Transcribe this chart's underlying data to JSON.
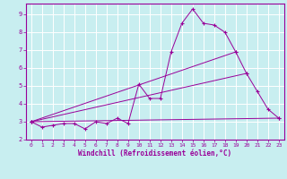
{
  "background_color": "#c8eef0",
  "grid_color": "#aadddd",
  "line_color": "#990099",
  "xlabel": "Windchill (Refroidissement éolien,°C)",
  "xlabel_color": "#990099",
  "xlim": [
    -0.5,
    23.5
  ],
  "ylim": [
    2,
    9.6
  ],
  "yticks": [
    2,
    3,
    4,
    5,
    6,
    7,
    8,
    9
  ],
  "xticks": [
    0,
    1,
    2,
    3,
    4,
    5,
    6,
    7,
    8,
    9,
    10,
    11,
    12,
    13,
    14,
    15,
    16,
    17,
    18,
    19,
    20,
    21,
    22,
    23
  ],
  "series": [
    {
      "x": [
        0,
        1,
        2,
        3,
        4,
        5,
        6,
        7,
        8,
        9,
        10,
        11,
        12,
        13,
        14,
        15,
        16,
        17,
        18,
        19,
        20,
        21,
        22,
        23
      ],
      "y": [
        3.0,
        2.7,
        2.8,
        2.9,
        2.9,
        2.6,
        3.0,
        2.9,
        3.2,
        2.9,
        5.1,
        4.3,
        4.3,
        6.9,
        8.5,
        9.3,
        8.5,
        8.4,
        8.0,
        6.9,
        5.7,
        4.7,
        3.7,
        3.2
      ]
    },
    {
      "x": [
        0,
        23
      ],
      "y": [
        3.0,
        3.2
      ]
    },
    {
      "x": [
        0,
        19
      ],
      "y": [
        3.0,
        6.9
      ]
    },
    {
      "x": [
        0,
        20
      ],
      "y": [
        3.0,
        5.7
      ]
    }
  ]
}
